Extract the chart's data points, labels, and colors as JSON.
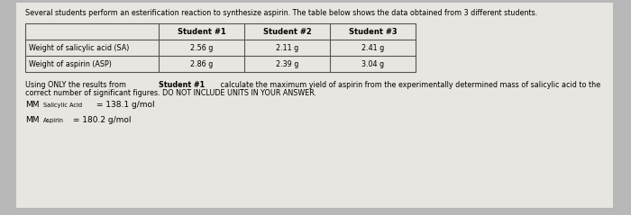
{
  "bg_color": "#b8b8b8",
  "panel_color": "#e8e6e0",
  "title_text": "Several students perform an esterification reaction to synthesize aspirin. The table below shows the data obtained from 3 different students.",
  "col_headers": [
    "Student #1",
    "Student #2",
    "Student #3"
  ],
  "row_labels": [
    "Weight of salicylic acid (SA)",
    "Weight of aspirin (ASP)"
  ],
  "table_data": [
    [
      "2.56 g",
      "2.11 g",
      "2.41 g"
    ],
    [
      "2.86 g",
      "2.39 g",
      "3.04 g"
    ]
  ],
  "line1_before": "Using ONLY the results from ",
  "line1_bold": "Student #1",
  "line1_after": " calculate the maximum yield of aspirin from the experimentally determined mass of salicylic acid to the",
  "line2": "correct number of significant figures. DO NOT INCLUDE UNITS IN YOUR ANSWER.",
  "mm_sa_prefix": "MM",
  "mm_sa_sub": "Salicylic Acid",
  "mm_sa_suffix": " = 138.1 g/mol",
  "mm_asp_prefix": "MM",
  "mm_asp_sub": "Aspirin",
  "mm_asp_suffix": " = 180.2 g/mol"
}
